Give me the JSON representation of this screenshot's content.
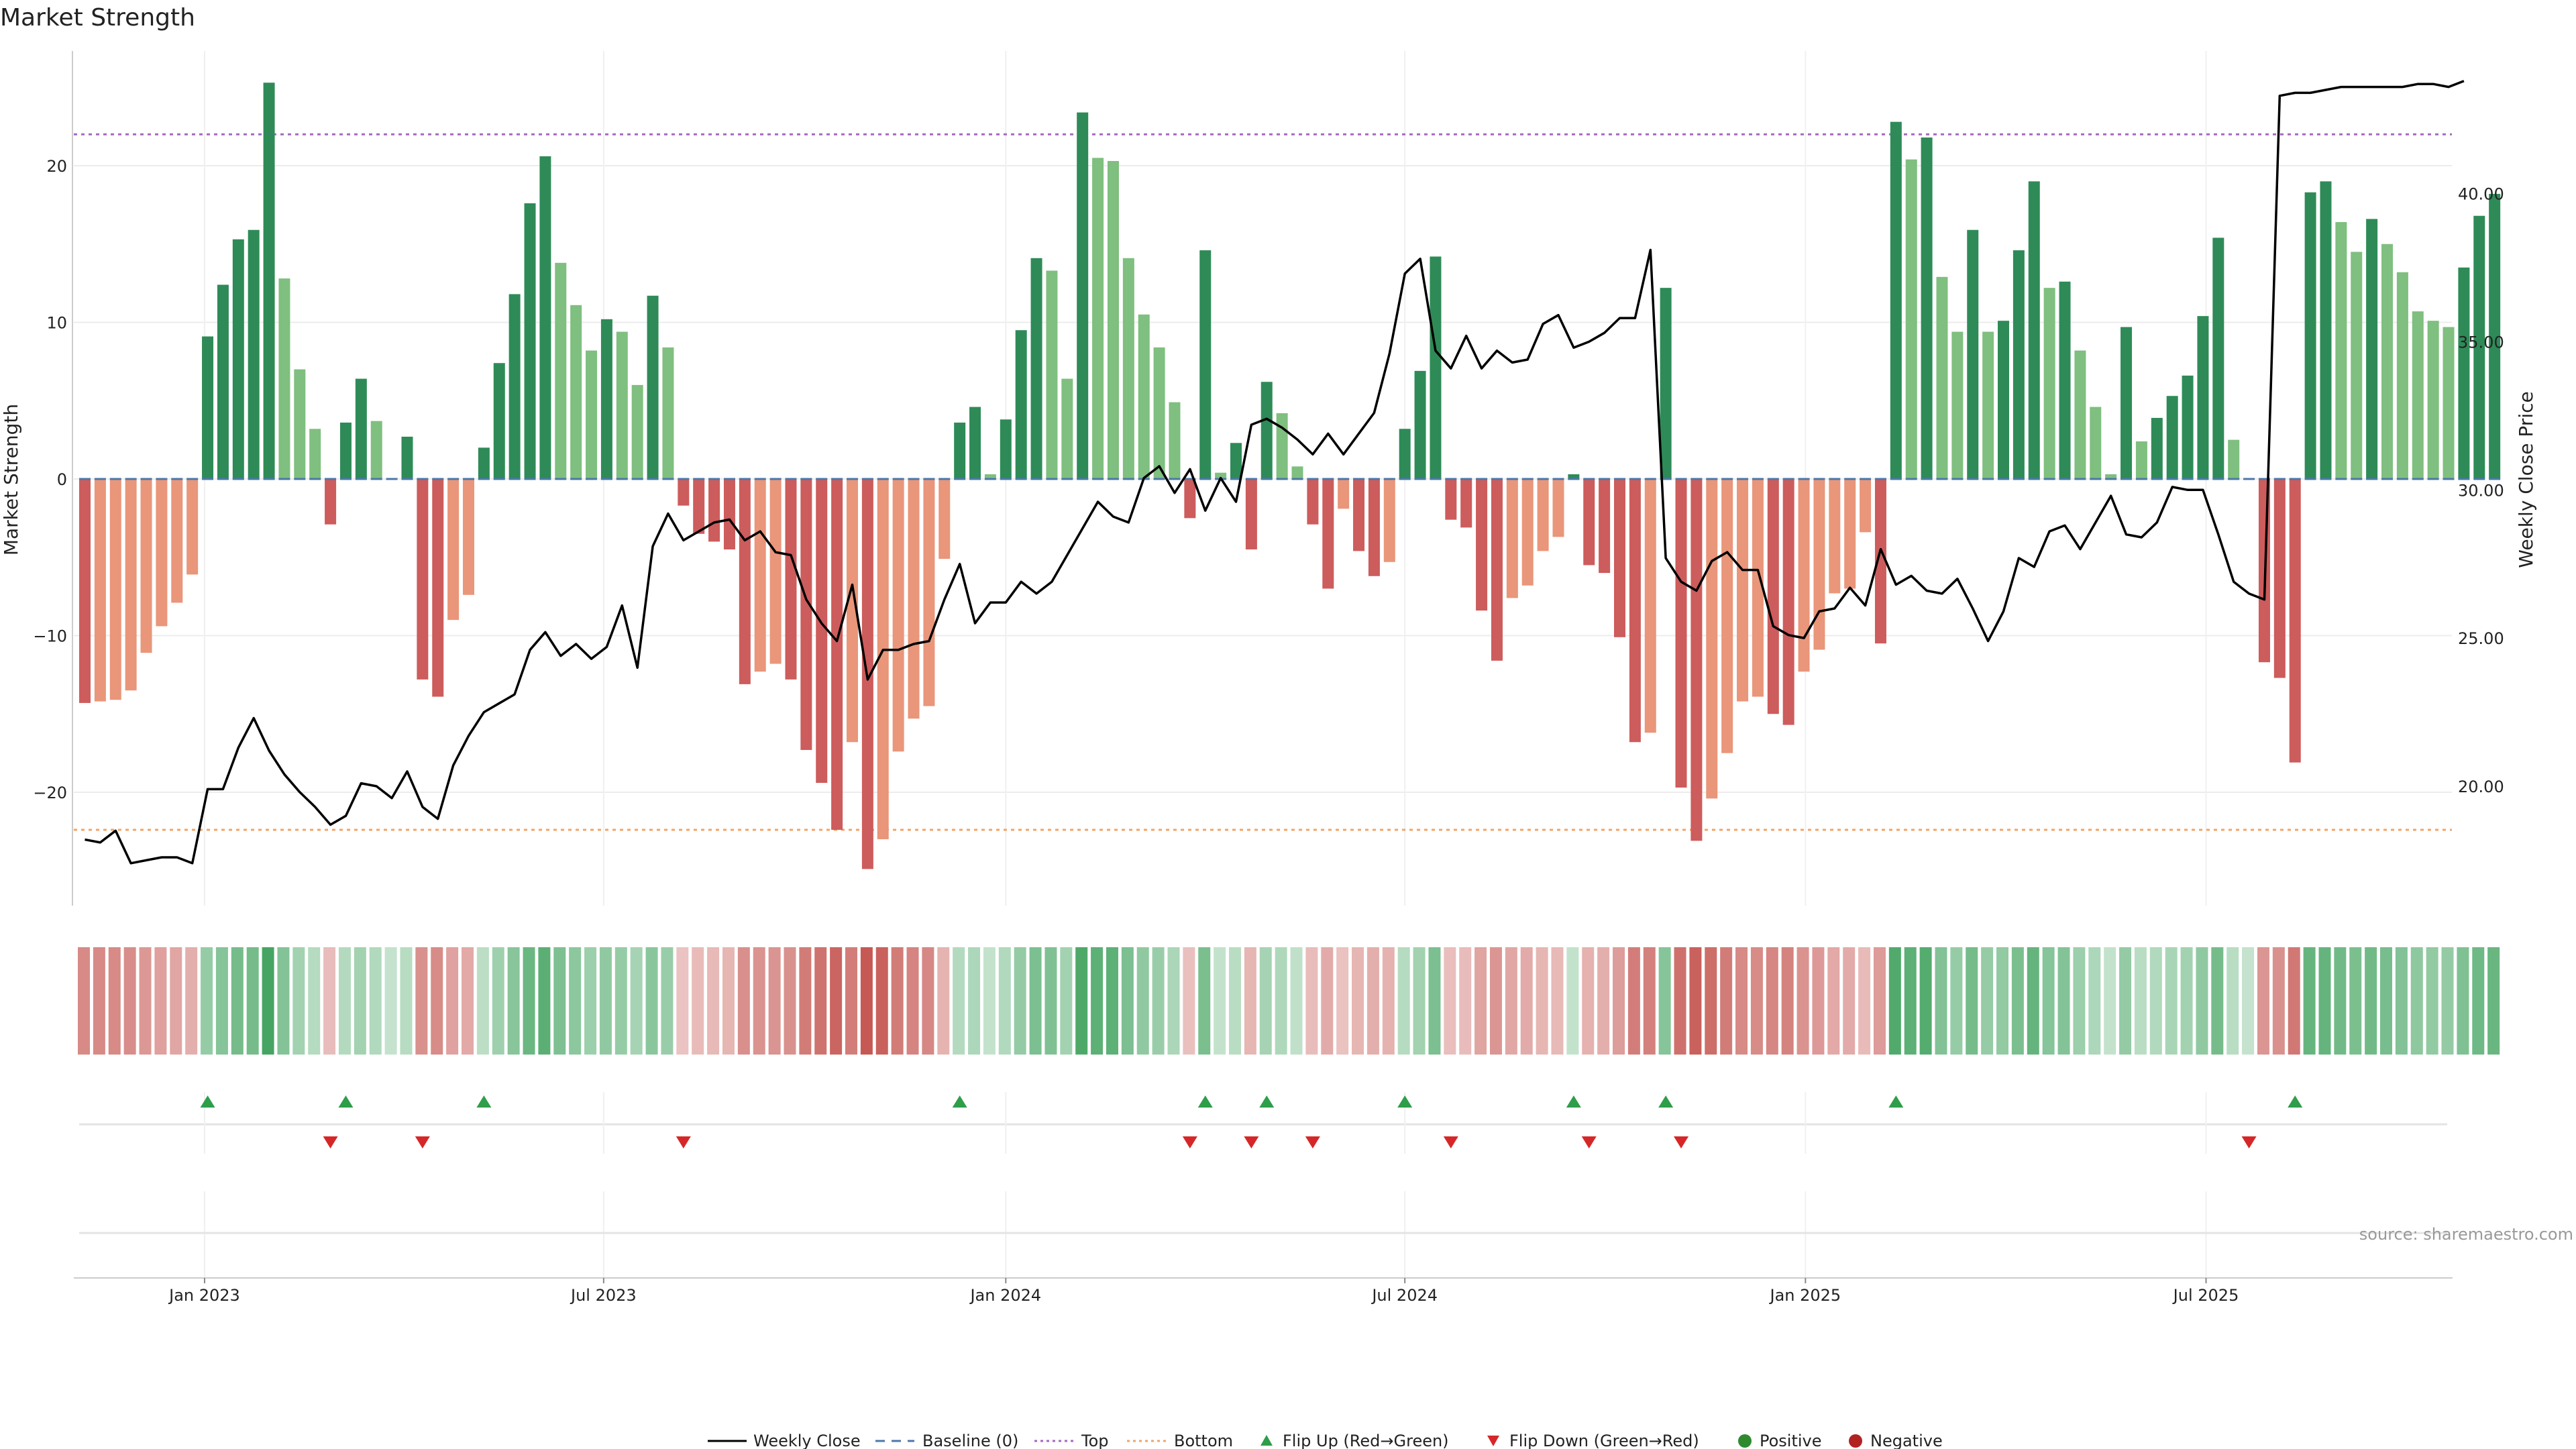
{
  "chart_data": {
    "type": "bar",
    "title": "Market Strength",
    "ylabel_left": "Market Strength",
    "ylabel_right": "Weekly Close Price",
    "ylim_left": [
      -27.5,
      27.5
    ],
    "ylim_right": [
      15.4,
      45.9
    ],
    "left_ticks": [
      "20",
      "10",
      "0",
      "−10",
      "−20"
    ],
    "left_tick_values": [
      20,
      10,
      0,
      -10,
      -20
    ],
    "right_ticks": [
      "40.00",
      "35.00",
      "30.00",
      "25.00",
      "20.00"
    ],
    "right_tick_values": [
      40,
      35,
      30,
      25,
      20
    ],
    "x_ticks": [
      "Jan 2023",
      "Jul 2023",
      "Jan 2024",
      "Jul 2024",
      "Jan 2025",
      "Jul 2025"
    ],
    "x_tick_index": [
      7.8,
      33.8,
      60.0,
      86.0,
      112.1,
      138.2
    ],
    "top_threshold": 22,
    "bottom_threshold": -22.4,
    "strength": [
      -14.3,
      -14.2,
      -14.1,
      -13.5,
      -11.1,
      -9.4,
      -7.9,
      -6.1,
      9.1,
      12.4,
      15.3,
      15.9,
      25.3,
      12.8,
      7.0,
      3.2,
      -2.9,
      3.6,
      6.4,
      3.7,
      0,
      2.7,
      -12.8,
      -13.9,
      -9.0,
      -7.4,
      2.0,
      7.4,
      11.8,
      17.6,
      20.6,
      13.8,
      11.1,
      8.2,
      10.2,
      9.4,
      6.0,
      11.7,
      8.4,
      -1.7,
      -3.5,
      -4.0,
      -4.5,
      -13.1,
      -12.3,
      -11.8,
      -12.8,
      -17.3,
      -19.4,
      -22.4,
      -16.8,
      -24.9,
      -23.0,
      -17.4,
      -15.3,
      -14.5,
      -5.1,
      3.6,
      4.6,
      0.3,
      3.8,
      9.5,
      14.1,
      13.3,
      6.4,
      23.4,
      20.5,
      20.3,
      14.1,
      10.5,
      8.4,
      4.9,
      -2.5,
      14.6,
      0.4,
      2.3,
      -4.5,
      6.2,
      4.2,
      0.8,
      -2.9,
      -7.0,
      -1.9,
      -4.6,
      -6.2,
      -5.3,
      3.2,
      6.9,
      14.2,
      -2.6,
      -3.1,
      -8.4,
      -11.6,
      -7.6,
      -6.8,
      -4.6,
      -3.7,
      0.3,
      -5.5,
      -6.0,
      -10.1,
      -16.8,
      -16.2,
      12.2,
      -19.7,
      -23.1,
      -20.4,
      -17.5,
      -14.2,
      -13.9,
      -15.0,
      -15.7,
      -12.3,
      -10.9,
      -7.3,
      -7.0,
      -3.4,
      -10.5,
      22.8,
      20.4,
      21.8,
      12.9,
      9.4,
      15.9,
      9.4,
      10.1,
      14.6,
      19.0,
      12.2,
      12.6,
      8.2,
      4.6,
      0.3,
      9.7,
      2.4,
      3.9,
      5.3,
      6.6,
      10.4,
      15.4,
      2.5,
      0,
      -11.7,
      -12.7,
      -18.1,
      18.3,
      19.0,
      16.4,
      14.5,
      16.6,
      15.0,
      13.2,
      10.7,
      10.1,
      9.7,
      13.5,
      16.8,
      18.2
    ],
    "close": [
      18.2,
      18.1,
      18.5,
      17.4,
      17.5,
      17.6,
      17.6,
      17.4,
      19.9,
      19.9,
      21.3,
      22.3,
      21.2,
      20.4,
      19.8,
      19.3,
      18.7,
      19.0,
      20.1,
      20.0,
      19.6,
      20.5,
      19.3,
      18.9,
      20.7,
      21.7,
      22.5,
      22.8,
      23.1,
      24.6,
      25.2,
      24.4,
      24.8,
      24.3,
      24.7,
      26.1,
      24.0,
      28.1,
      29.2,
      28.3,
      28.6,
      28.9,
      29.0,
      28.3,
      28.6,
      27.9,
      27.8,
      26.3,
      25.5,
      24.9,
      26.8,
      23.6,
      24.6,
      24.6,
      24.8,
      24.9,
      26.3,
      27.5,
      25.5,
      26.2,
      26.2,
      26.9,
      26.5,
      26.9,
      27.8,
      28.7,
      29.6,
      29.1,
      28.9,
      30.4,
      30.8,
      29.9,
      30.7,
      29.3,
      30.4,
      29.6,
      32.2,
      32.4,
      32.1,
      31.7,
      31.2,
      31.9,
      31.2,
      31.9,
      32.6,
      34.6,
      37.3,
      37.8,
      34.7,
      34.1,
      35.2,
      34.1,
      34.7,
      34.3,
      34.4,
      35.6,
      35.9,
      34.8,
      35.0,
      35.3,
      35.8,
      35.8,
      38.1,
      27.7,
      26.9,
      26.6,
      27.6,
      27.9,
      27.3,
      27.3,
      25.4,
      25.1,
      25.0,
      25.9,
      26.0,
      26.7,
      26.1,
      28.0,
      26.8,
      27.1,
      26.6,
      26.5,
      27.0,
      26.0,
      24.9,
      25.9,
      27.7,
      27.4,
      28.6,
      28.8,
      28.0,
      28.9,
      29.8,
      28.5,
      28.4,
      28.9,
      30.1,
      30.0,
      30.0,
      28.5,
      26.9,
      26.5,
      26.3,
      43.3,
      43.4,
      43.4,
      43.5,
      43.6,
      43.6,
      43.6,
      43.6,
      43.6,
      43.7,
      43.7,
      43.6,
      43.8
    ],
    "flip_up_index": [
      8,
      17,
      26,
      57,
      73,
      77,
      86,
      97,
      103,
      118,
      144
    ],
    "flip_down_index": [
      16,
      22,
      39,
      72,
      76,
      80,
      89,
      98,
      104,
      141
    ],
    "series": [
      {
        "name": "Weekly Close",
        "color": "#000000"
      },
      {
        "name": "Baseline (0)",
        "color": "#4c78a8"
      },
      {
        "name": "Top",
        "color": "#a768c2"
      },
      {
        "name": "Bottom",
        "color": "#f0a46a"
      },
      {
        "name": "Flip Up (Red→Green)",
        "color": "#2e9e4a"
      },
      {
        "name": "Flip Down (Green→Red)",
        "color": "#d62728"
      },
      {
        "name": "Positive",
        "color": "#2f8a2f"
      },
      {
        "name": "Negative",
        "color": "#b22222"
      }
    ],
    "source": "source: sharemaestro.com"
  },
  "colors": {
    "strong_green": "#2e8b57",
    "light_green": "#7fbf7f",
    "strong_red": "#cd5c5c",
    "light_red": "#e9967a",
    "baseline": "#4c78a8"
  }
}
